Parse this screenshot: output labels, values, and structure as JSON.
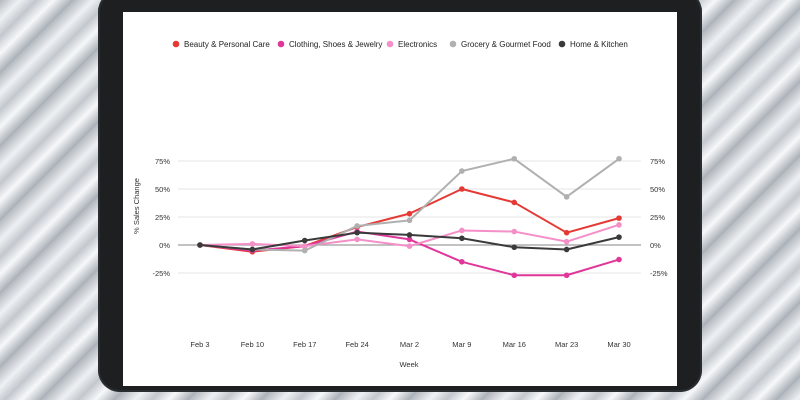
{
  "chart_data": {
    "type": "line",
    "title": "",
    "xlabel": "Week",
    "ylabel": "% Sales Change",
    "categories": [
      "Feb 3",
      "Feb 10",
      "Feb 17",
      "Feb 24",
      "Mar 2",
      "Mar 9",
      "Mar 16",
      "Mar 23",
      "Mar 30"
    ],
    "yticks": [
      75,
      50,
      25,
      0,
      -25
    ],
    "ytick_labels": [
      "75%",
      "50%",
      "25%",
      "0%",
      "-25%"
    ],
    "ylim": [
      -30,
      80
    ],
    "legend_position": "top",
    "grid": true,
    "secondary_y_axis": true,
    "series": [
      {
        "name": "Beauty & Personal Care",
        "color": "#e53935",
        "values": [
          0,
          -6,
          -1,
          16,
          28,
          50,
          38,
          11,
          24
        ]
      },
      {
        "name": "Clothing, Shoes & Jewelry",
        "color": "#e0369a",
        "values": [
          0,
          -5,
          -1,
          12,
          5,
          -15,
          -27,
          -27,
          -13
        ]
      },
      {
        "name": "Electronics",
        "color": "#f48fc8",
        "values": [
          0,
          1,
          -1,
          5,
          -1,
          13,
          12,
          3,
          18
        ]
      },
      {
        "name": "Grocery & Gourmet Food",
        "color": "#b0b0b0",
        "values": [
          0,
          -4,
          -5,
          17,
          22,
          66,
          77,
          43,
          77
        ]
      },
      {
        "name": "Home & Kitchen",
        "color": "#3a3a3a",
        "values": [
          0,
          -4,
          4,
          11,
          9,
          6,
          -2,
          -4,
          7
        ]
      }
    ]
  }
}
